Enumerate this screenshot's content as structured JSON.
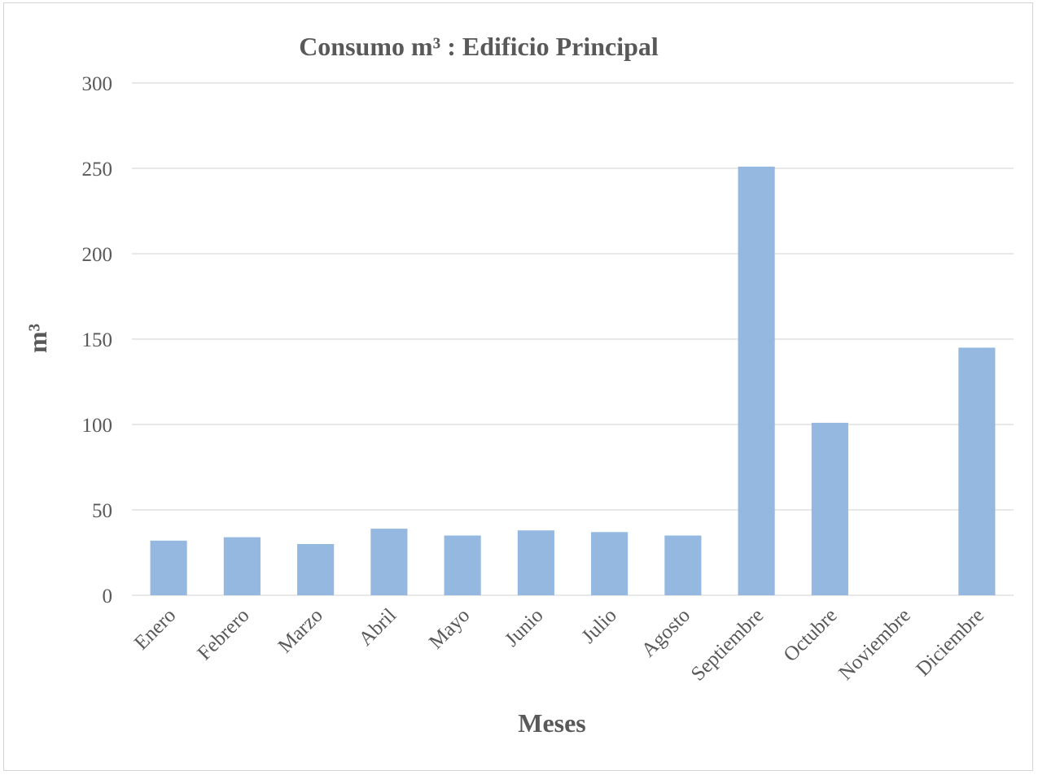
{
  "chart_data": {
    "type": "bar",
    "title": "Consumo m³  : Edificio Principal",
    "xlabel": "Meses",
    "ylabel": "m³",
    "ylim": [
      0,
      300
    ],
    "yticks": [
      "0",
      "50",
      "100",
      "150",
      "200",
      "250",
      "300"
    ],
    "grid": true,
    "legend": "none",
    "bar_color": "#95b8e0",
    "categories": [
      "Enero",
      "Febrero",
      "Marzo",
      "Abril",
      "Mayo",
      "Junio",
      "Julio",
      "Agosto",
      "Septiembre",
      "Octubre",
      "Noviembre",
      "Diciembre"
    ],
    "values": [
      32,
      34,
      30,
      39,
      35,
      38,
      37,
      35,
      251,
      101,
      0,
      145
    ]
  }
}
